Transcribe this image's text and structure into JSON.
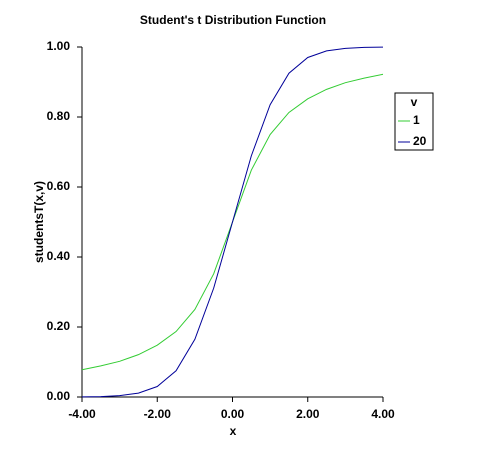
{
  "chart_data": {
    "type": "line",
    "title": "Student's t Distribution Function",
    "x_label": "x",
    "y_label": "studentsT(x,v)",
    "x": [
      -4,
      -3.5,
      -3,
      -2.5,
      -2,
      -1.5,
      -1,
      -0.5,
      0,
      0.5,
      1,
      1.5,
      2,
      2.5,
      3,
      3.5,
      4
    ],
    "series": [
      {
        "name": "1",
        "color": "#33cc33",
        "values": [
          0.078,
          0.089,
          0.102,
          0.121,
          0.148,
          0.187,
          0.25,
          0.352,
          0.5,
          0.648,
          0.75,
          0.813,
          0.852,
          0.879,
          0.898,
          0.911,
          0.922
        ]
      },
      {
        "name": "20",
        "color": "#000099",
        "values": [
          0.0004,
          0.001,
          0.004,
          0.011,
          0.03,
          0.075,
          0.165,
          0.311,
          0.5,
          0.689,
          0.835,
          0.925,
          0.97,
          0.989,
          0.996,
          0.999,
          0.9996
        ]
      }
    ],
    "legend_title": "v",
    "legend_position": "right",
    "xlim": [
      -4,
      4
    ],
    "xticks": [
      {
        "value": -4,
        "label": "-4.00"
      },
      {
        "value": -2,
        "label": "-2.00"
      },
      {
        "value": 0,
        "label": "0.00"
      },
      {
        "value": 2,
        "label": "2.00"
      },
      {
        "value": 4,
        "label": "4.00"
      }
    ],
    "ylim": [
      0,
      1
    ],
    "yticks": [
      {
        "value": 0,
        "label": "0.00"
      },
      {
        "value": 0.2,
        "label": "0.20"
      },
      {
        "value": 0.4,
        "label": "0.40"
      },
      {
        "value": 0.6,
        "label": "0.60"
      },
      {
        "value": 0.8,
        "label": "0.80"
      },
      {
        "value": 1,
        "label": "1.00"
      }
    ],
    "grid": false
  }
}
